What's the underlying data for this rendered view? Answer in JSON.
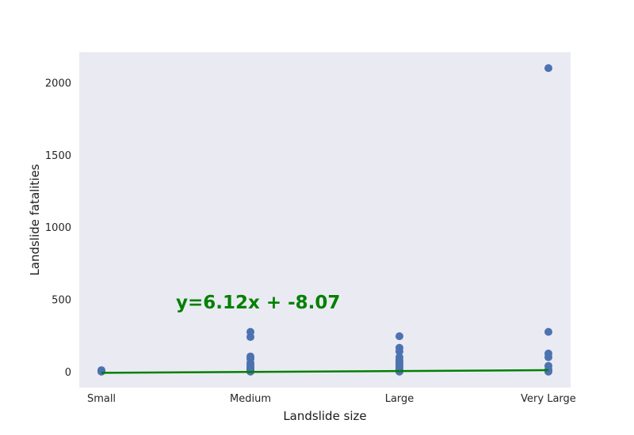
{
  "chart_data": {
    "type": "scatter",
    "title": "",
    "xlabel": "Landslide size",
    "ylabel": "Landslide fatalities",
    "categories": [
      "Small",
      "Medium",
      "Large",
      "Very Large"
    ],
    "y_ticks": [
      0,
      500,
      1000,
      1500,
      2000
    ],
    "ylim": [
      -110,
      2210
    ],
    "grid": false,
    "series": [
      {
        "color": "#4c72b0",
        "points": [
          {
            "x": "Small",
            "y": 0
          },
          {
            "x": "Small",
            "y": 2
          },
          {
            "x": "Small",
            "y": 5
          },
          {
            "x": "Small",
            "y": 10
          },
          {
            "x": "Medium",
            "y": 0
          },
          {
            "x": "Medium",
            "y": 5
          },
          {
            "x": "Medium",
            "y": 10
          },
          {
            "x": "Medium",
            "y": 20
          },
          {
            "x": "Medium",
            "y": 30
          },
          {
            "x": "Medium",
            "y": 45
          },
          {
            "x": "Medium",
            "y": 60
          },
          {
            "x": "Medium",
            "y": 90
          },
          {
            "x": "Medium",
            "y": 105
          },
          {
            "x": "Medium",
            "y": 240
          },
          {
            "x": "Medium",
            "y": 275
          },
          {
            "x": "Large",
            "y": 0
          },
          {
            "x": "Large",
            "y": 5
          },
          {
            "x": "Large",
            "y": 10
          },
          {
            "x": "Large",
            "y": 20
          },
          {
            "x": "Large",
            "y": 35
          },
          {
            "x": "Large",
            "y": 50
          },
          {
            "x": "Large",
            "y": 65
          },
          {
            "x": "Large",
            "y": 80
          },
          {
            "x": "Large",
            "y": 100
          },
          {
            "x": "Large",
            "y": 140
          },
          {
            "x": "Large",
            "y": 165
          },
          {
            "x": "Large",
            "y": 245
          },
          {
            "x": "Very Large",
            "y": 0
          },
          {
            "x": "Very Large",
            "y": 5
          },
          {
            "x": "Very Large",
            "y": 15
          },
          {
            "x": "Very Large",
            "y": 40
          },
          {
            "x": "Very Large",
            "y": 100
          },
          {
            "x": "Very Large",
            "y": 125
          },
          {
            "x": "Very Large",
            "y": 275
          },
          {
            "x": "Very Large",
            "y": 2100
          }
        ]
      }
    ],
    "trendline": {
      "color": "#008000",
      "slope": 6.12,
      "intercept": -8.07,
      "label": "y=6.12x + -8.07",
      "label_anchor": {
        "x": "Medium",
        "y": 540
      }
    },
    "colors": {
      "plot_background": "#eaeaf2",
      "marker": "#4c72b0",
      "trend": "#008000"
    }
  }
}
